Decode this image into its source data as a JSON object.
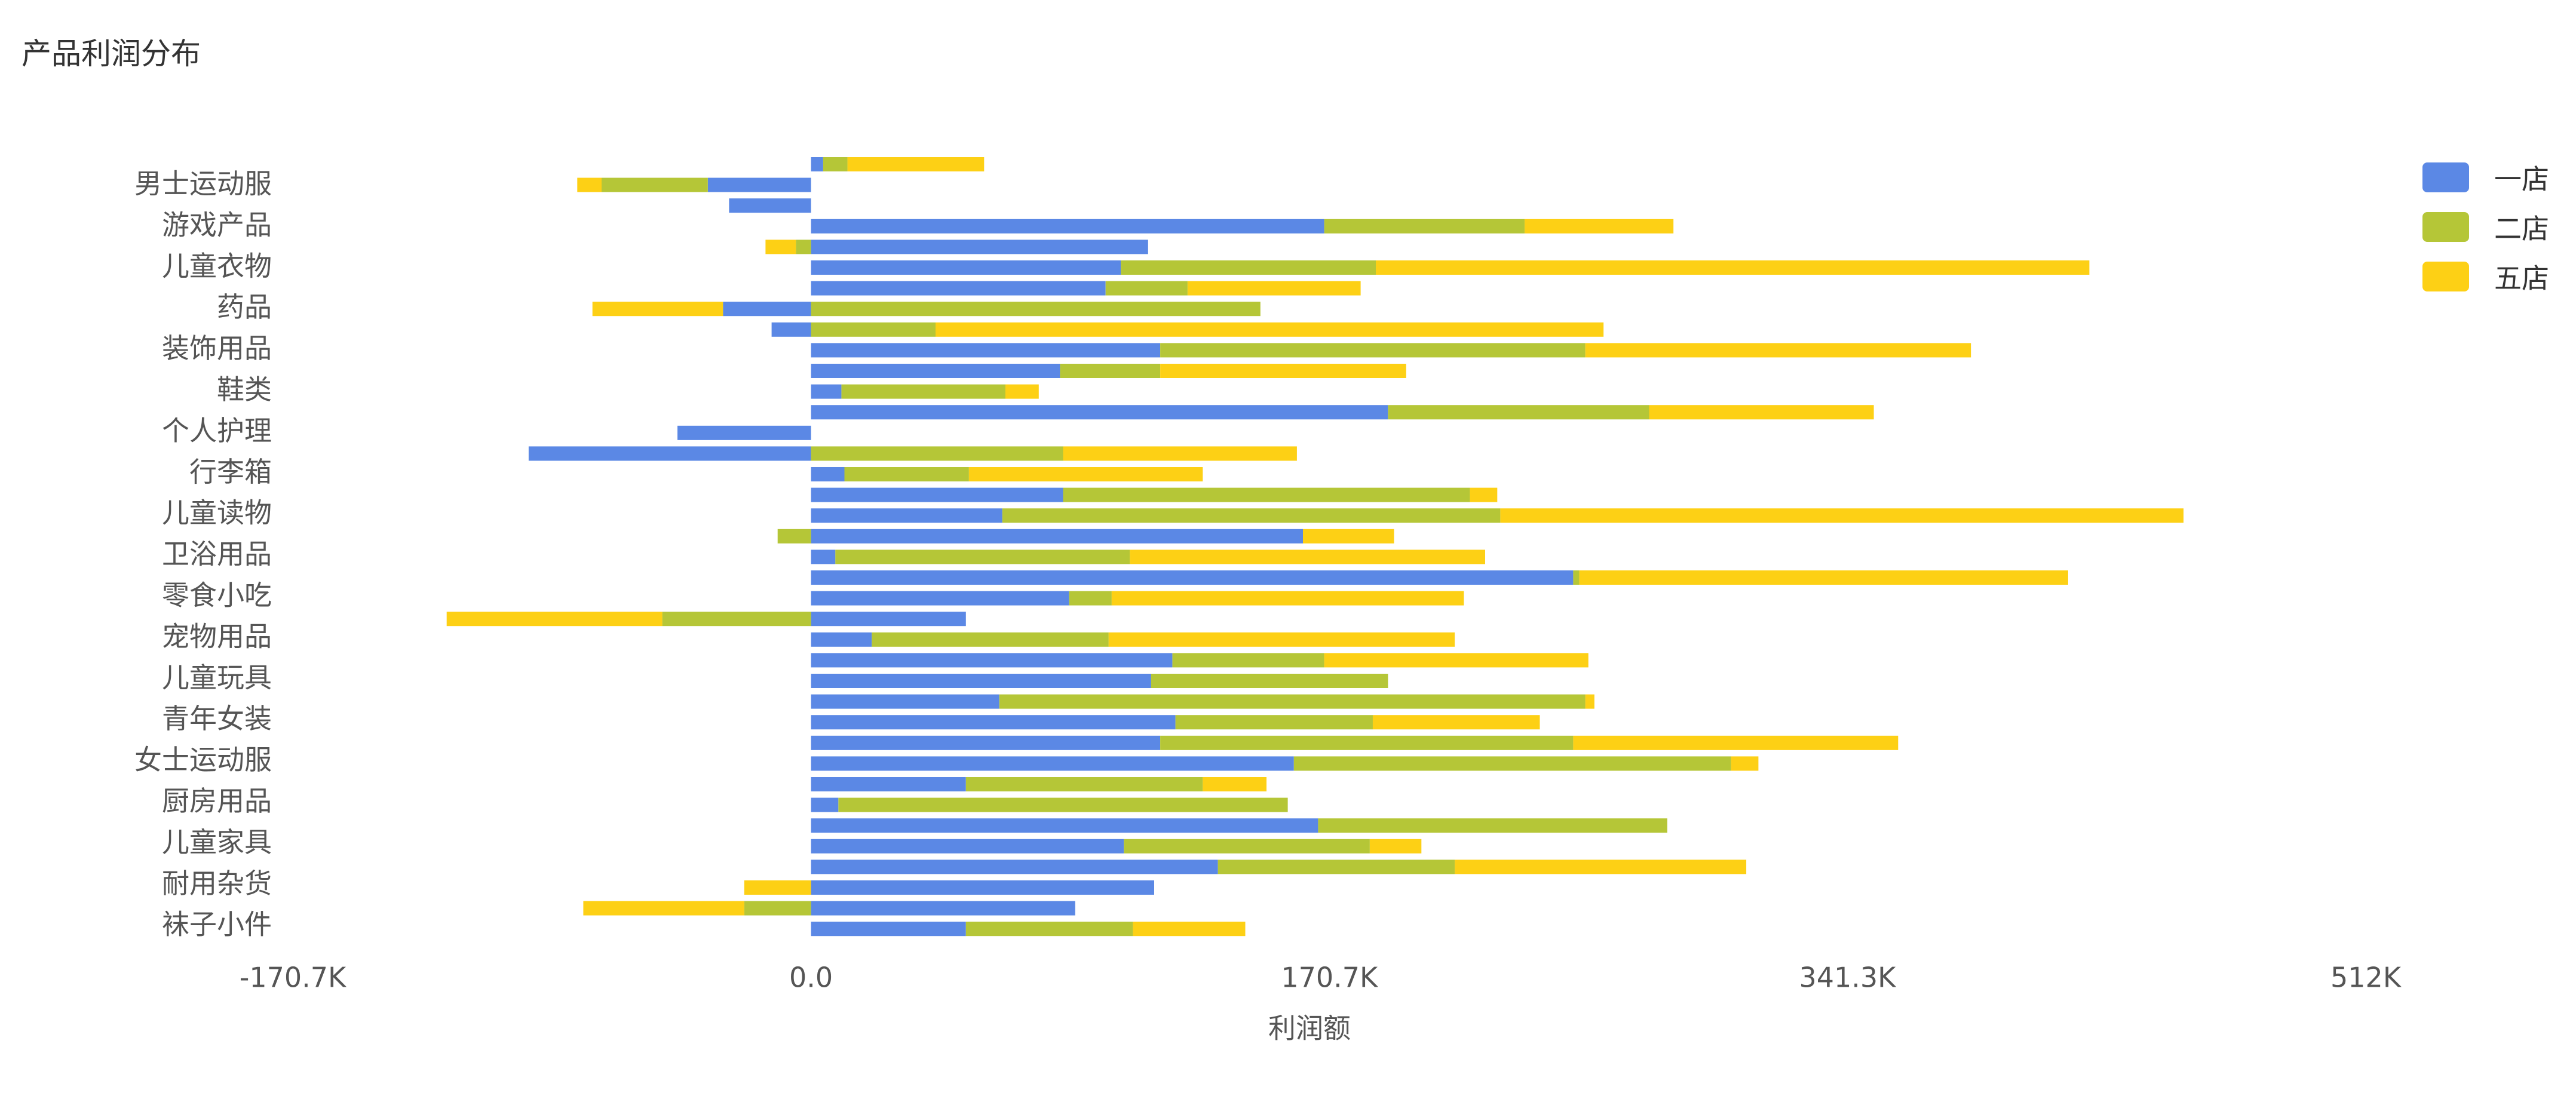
{
  "colors": {
    "一店": "#5B88E5",
    "二店": "#B5C637",
    "五店": "#FDD015"
  },
  "chart_data": {
    "type": "bar",
    "orientation": "horizontal",
    "stacked": true,
    "title": "产品利润分布",
    "xlabel": "利润额",
    "ylabel": "",
    "xlim": [
      -170700,
      512000
    ],
    "xticks": [
      "-170.7K",
      "0.0",
      "170.7K",
      "341.3K",
      "512K"
    ],
    "xtick_values": [
      -170700,
      0,
      170700,
      341300,
      512000
    ],
    "ytick_labels": [
      "男士运动服",
      "游戏产品",
      "儿童衣物",
      "药品",
      "装饰用品",
      "鞋类",
      "个人护理",
      "行李箱",
      "儿童读物",
      "卫浴用品",
      "零食小吃",
      "宠物用品",
      "儿童玩具",
      "青年女装",
      "女士运动服",
      "厨房用品",
      "儿童家具",
      "耐用杂货",
      "袜子小件"
    ],
    "grid": false,
    "legend": {
      "position": "top-right",
      "entries": [
        "一店",
        "二店",
        "五店"
      ]
    },
    "series": [
      {
        "name": "一店",
        "values": [
          4000,
          -34000,
          -27000,
          169000,
          111000,
          102000,
          97000,
          -29000,
          -13000,
          115000,
          82000,
          10000,
          190000,
          -44000,
          -93000,
          11000,
          83000,
          63000,
          162000,
          8000,
          251000,
          85000,
          51000,
          20000,
          119000,
          112000,
          62000,
          120000,
          115000,
          159000,
          51000,
          9000,
          167000,
          103000,
          134000,
          113000,
          87000,
          51000
        ]
      },
      {
        "name": "二店",
        "values": [
          8000,
          -35000,
          0,
          66000,
          -5000,
          84000,
          27000,
          148000,
          41000,
          140000,
          33000,
          54000,
          86000,
          0,
          83000,
          41000,
          134000,
          164000,
          -11000,
          97000,
          2000,
          14000,
          -49000,
          78000,
          50000,
          78000,
          193000,
          65000,
          136000,
          144000,
          78000,
          148000,
          115000,
          81000,
          78000,
          0,
          -22000,
          55000
        ]
      },
      {
        "name": "五店",
        "values": [
          45000,
          -8000,
          0,
          49000,
          -10000,
          235000,
          57000,
          -43000,
          220000,
          127000,
          81000,
          11000,
          74000,
          0,
          77000,
          77000,
          9000,
          225000,
          30000,
          117000,
          161000,
          116000,
          -71000,
          114000,
          87000,
          0,
          3000,
          55000,
          107000,
          9000,
          21000,
          0,
          0,
          17000,
          96000,
          -22000,
          -53000,
          37000
        ]
      }
    ]
  }
}
